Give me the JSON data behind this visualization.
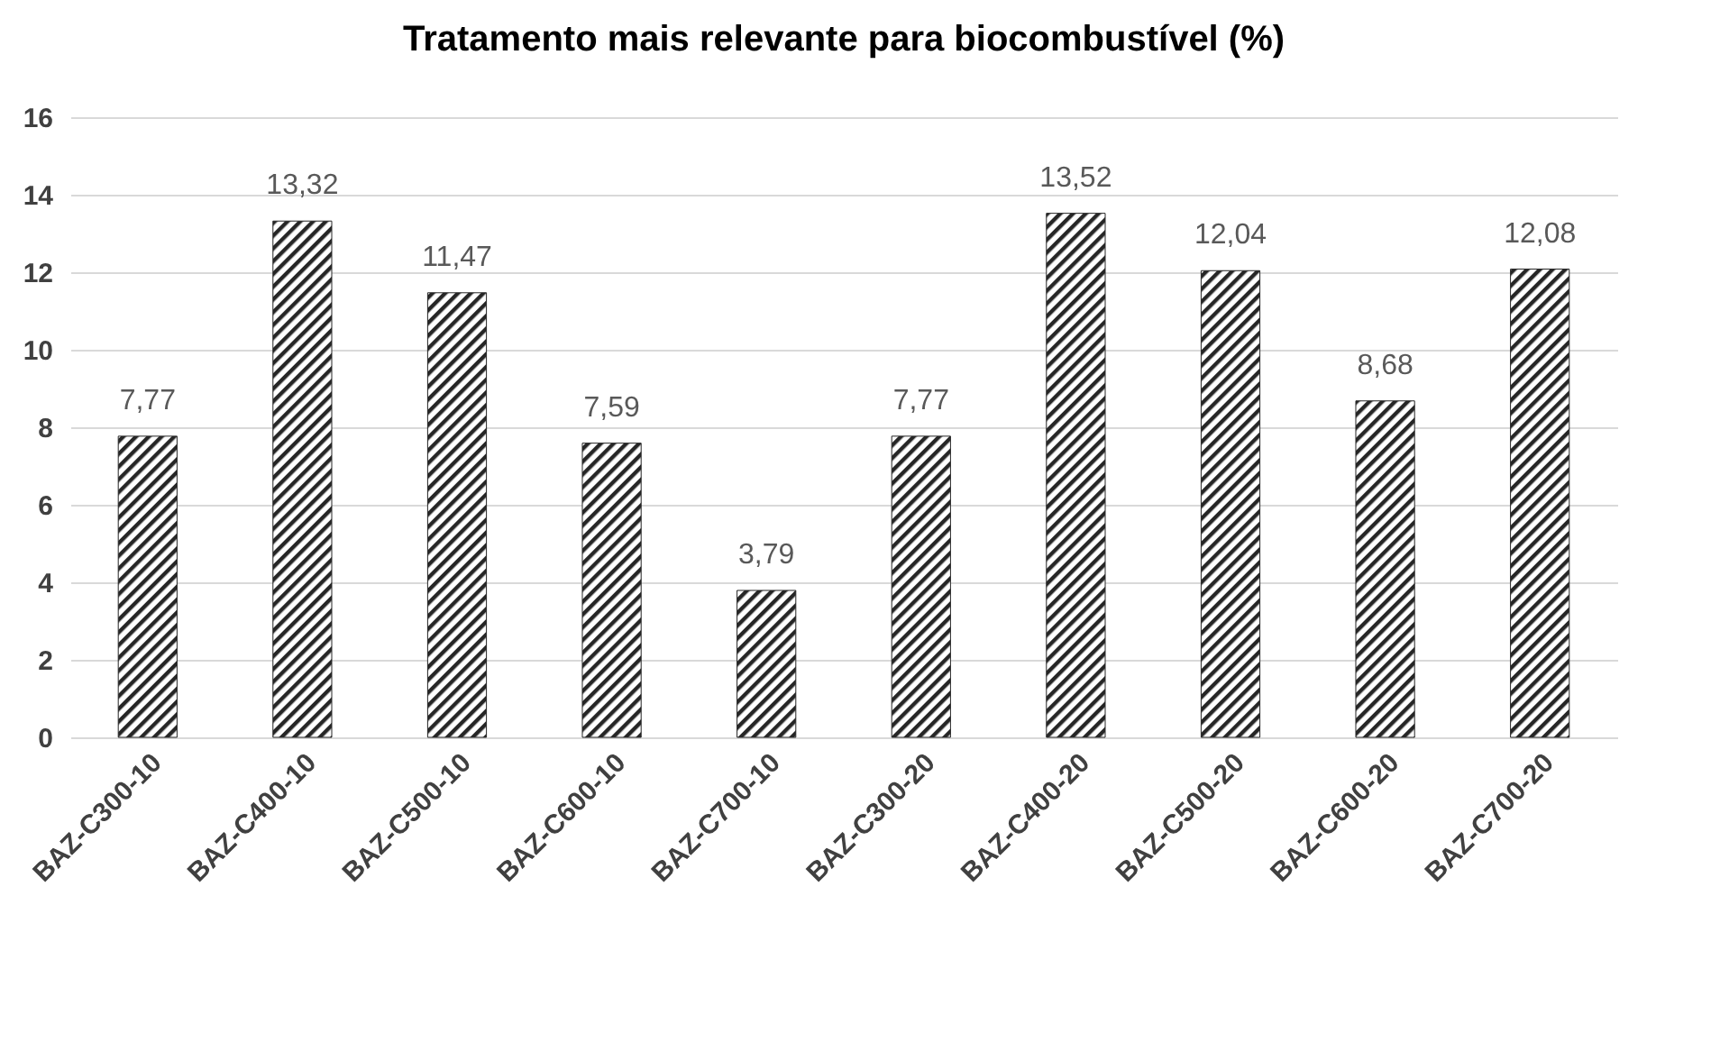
{
  "chart_data": {
    "type": "bar",
    "title": "Tratamento mais relevante para biocombustível (%)",
    "categories": [
      "BAZ-C300-10",
      "BAZ-C400-10",
      "BAZ-C500-10",
      "BAZ-C600-10",
      "BAZ-C700-10",
      "BAZ-C300-20",
      "BAZ-C400-20",
      "BAZ-C500-20",
      "BAZ-C600-20",
      "BAZ-C700-20"
    ],
    "values": [
      7.77,
      13.32,
      11.47,
      7.59,
      3.79,
      7.77,
      13.52,
      12.04,
      8.68,
      12.08
    ],
    "value_labels": [
      "7,77",
      "13,32",
      "11,47",
      "7,59",
      "3,79",
      "7,77",
      "13,52",
      "12,04",
      "8,68",
      "12,08"
    ],
    "color": "#262626",
    "ylim": [
      0,
      16
    ],
    "yticks": [
      0,
      2,
      4,
      6,
      8,
      10,
      12,
      14,
      16
    ],
    "grid": "y"
  }
}
